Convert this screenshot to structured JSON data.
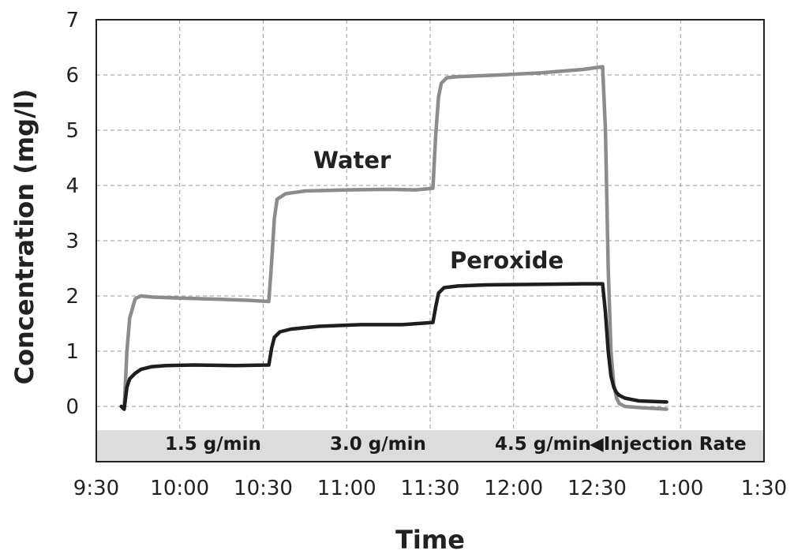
{
  "colors": {
    "water": "#8c8c8c",
    "peroxide": "#1e1e1e",
    "band": "#dcdcdc",
    "grid": "#9a9a9a",
    "frame": "#222222"
  },
  "chart_data": {
    "type": "line",
    "title": "",
    "xlabel": "Time",
    "ylabel": "Concentration (mg/l)",
    "ylim": [
      -1,
      7
    ],
    "xlim_minutes": [
      0,
      240
    ],
    "x_tick_labels": [
      "9:30",
      "10:00",
      "10:30",
      "11:00",
      "11:30",
      "12:00",
      "12:30",
      "1:00",
      "1:30"
    ],
    "x_tick_minutes": [
      0,
      30,
      60,
      90,
      120,
      150,
      180,
      210,
      240
    ],
    "y_tick_labels": [
      "0",
      "1",
      "2",
      "3",
      "4",
      "5",
      "6",
      "7"
    ],
    "y_ticks": [
      0,
      1,
      2,
      3,
      4,
      5,
      6,
      7
    ],
    "series": [
      {
        "name": "Water",
        "x_minutes": [
          9,
          10,
          11,
          12,
          14,
          16,
          20,
          30,
          45,
          55,
          62,
          63,
          64,
          65,
          68,
          75,
          90,
          105,
          115,
          121,
          122,
          123,
          124,
          126,
          130,
          145,
          160,
          175,
          182,
          183,
          184,
          185,
          186,
          187,
          188,
          190,
          195,
          205
        ],
        "values": [
          0,
          -0.05,
          1.0,
          1.6,
          1.95,
          2.0,
          1.98,
          1.96,
          1.94,
          1.92,
          1.9,
          2.6,
          3.4,
          3.75,
          3.85,
          3.9,
          3.92,
          3.93,
          3.92,
          3.95,
          4.9,
          5.6,
          5.85,
          5.95,
          5.97,
          6.0,
          6.04,
          6.1,
          6.15,
          5.0,
          2.5,
          1.0,
          0.4,
          0.15,
          0.05,
          0.0,
          -0.02,
          -0.05
        ]
      },
      {
        "name": "Peroxide",
        "x_minutes": [
          9,
          10,
          11,
          12,
          14,
          16,
          20,
          25,
          35,
          50,
          62,
          63,
          64,
          66,
          70,
          80,
          95,
          110,
          121,
          122,
          123,
          125,
          130,
          140,
          160,
          175,
          182,
          183,
          184,
          185,
          186,
          187,
          188,
          190,
          195,
          205
        ],
        "values": [
          0,
          -0.05,
          0.35,
          0.5,
          0.6,
          0.67,
          0.72,
          0.74,
          0.75,
          0.74,
          0.75,
          1.05,
          1.25,
          1.35,
          1.4,
          1.45,
          1.48,
          1.48,
          1.52,
          1.8,
          2.05,
          2.15,
          2.18,
          2.2,
          2.21,
          2.22,
          2.22,
          1.7,
          1.0,
          0.55,
          0.35,
          0.25,
          0.2,
          0.15,
          0.1,
          0.08
        ]
      }
    ],
    "annotations": {
      "water_label": "Water",
      "peroxide_label": "Peroxide",
      "injection_rates": [
        "1.5 g/min",
        "3.0 g/min",
        "4.5 g/min"
      ],
      "injection_rate_label": "◀Injection Rate"
    },
    "grid": true
  }
}
